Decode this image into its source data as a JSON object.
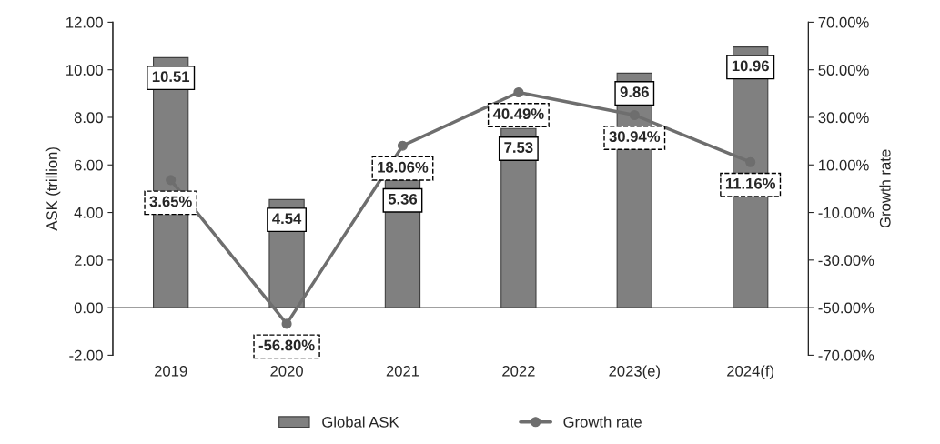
{
  "chart_data": {
    "type": "bar",
    "categories": [
      "2019",
      "2020",
      "2021",
      "2022",
      "2023(e)",
      "2024(f)"
    ],
    "ylabel": "ASK (trillion)",
    "y2label": "Growth rate",
    "ylim": [
      -2,
      12
    ],
    "yticks": [
      {
        "value": -2,
        "label": "-2.00"
      },
      {
        "value": 0,
        "label": "0.00"
      },
      {
        "value": 2,
        "label": "2.00"
      },
      {
        "value": 4,
        "label": "4.00"
      },
      {
        "value": 6,
        "label": "6.00"
      },
      {
        "value": 8,
        "label": "8.00"
      },
      {
        "value": 10,
        "label": "10.00"
      },
      {
        "value": 12,
        "label": "12.00"
      }
    ],
    "y2lim": [
      -70,
      70
    ],
    "y2ticks": [
      {
        "value": -70,
        "label": "-70.00%"
      },
      {
        "value": -50,
        "label": "-50.00%"
      },
      {
        "value": -30,
        "label": "-30.00%"
      },
      {
        "value": -10,
        "label": "-10.00%"
      },
      {
        "value": 10,
        "label": "10.00%"
      },
      {
        "value": 30,
        "label": "30.00%"
      },
      {
        "value": 50,
        "label": "50.00%"
      },
      {
        "value": 70,
        "label": "70.00%"
      }
    ],
    "series": [
      {
        "name": "Global ASK",
        "type": "bar",
        "color": "#808080",
        "values": [
          10.51,
          4.54,
          5.36,
          7.53,
          9.86,
          10.96
        ],
        "value_labels": [
          "10.51",
          "4.54",
          "5.36",
          "7.53",
          "9.86",
          "10.96"
        ]
      },
      {
        "name": "Growth rate",
        "type": "line",
        "axis": "y2",
        "color": "#6e6e6e",
        "marker": "circle",
        "line_style": "solid",
        "values": [
          3.65,
          -56.8,
          18.06,
          40.49,
          30.94,
          11.16
        ],
        "value_labels": [
          "3.65%",
          "-56.80%",
          "18.06%",
          "40.49%",
          "30.94%",
          "11.16%"
        ]
      }
    ],
    "ref_lines": [
      {
        "axis": "y",
        "value": 0,
        "color": "#808080",
        "line_style": "solid"
      }
    ],
    "grid": false,
    "legend": "bottom"
  }
}
